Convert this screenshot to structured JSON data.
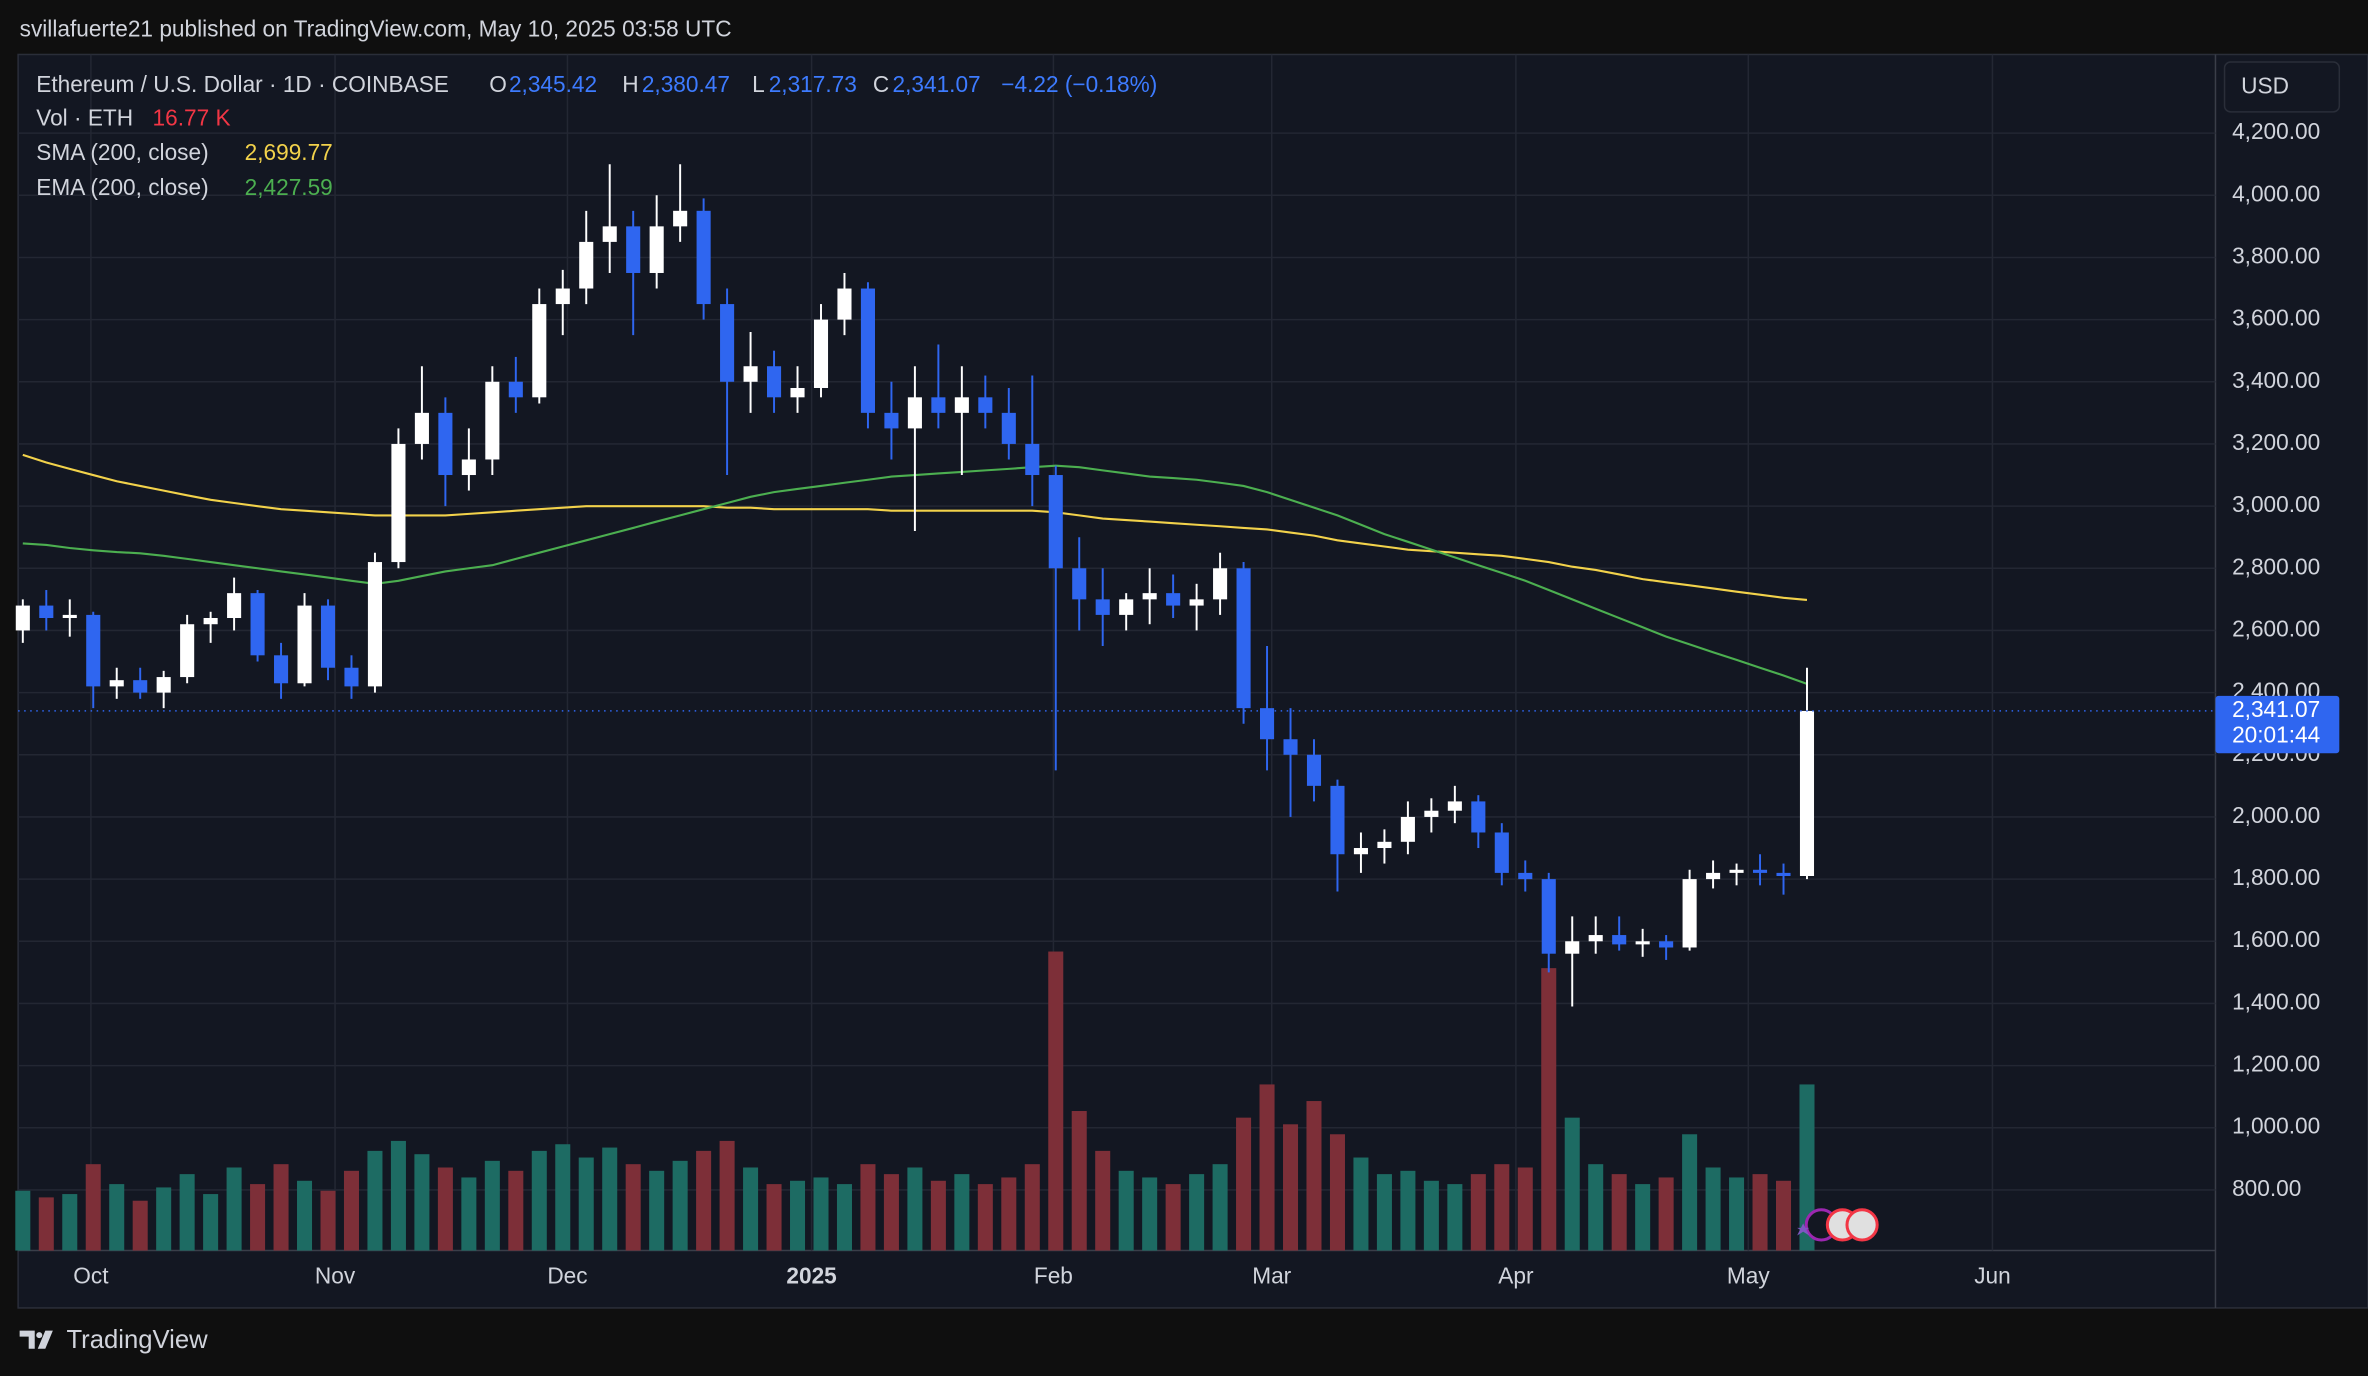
{
  "header": {
    "published": "svillafuerte21 published on TradingView.com, May 10, 2025 03:58 UTC"
  },
  "footer": {
    "brand": "TradingView"
  },
  "chart_data": {
    "type": "candlestick",
    "legend": {
      "symbol": "Ethereum / U.S. Dollar · 1D · COINBASE",
      "o_label": "O",
      "o": "2,345.42",
      "h_label": "H",
      "h": "2,380.47",
      "l_label": "L",
      "l": "2,317.73",
      "c_label": "C",
      "c": "2,341.07",
      "change": "−4.22 (−0.18%)"
    },
    "currency": "USD",
    "last_price": {
      "value": 2341.07,
      "label": "2,341.07"
    },
    "countdown": "20:01:44",
    "up_color": "#ffffff",
    "down_color": "#2f66f0",
    "grid": true,
    "ylim": [
      605,
      4453
    ],
    "yticks": [
      {
        "value": 800,
        "label": "800.00"
      },
      {
        "value": 1000,
        "label": "1,000.00"
      },
      {
        "value": 1200,
        "label": "1,200.00"
      },
      {
        "value": 1400,
        "label": "1,400.00"
      },
      {
        "value": 1600,
        "label": "1,600.00"
      },
      {
        "value": 1800,
        "label": "1,800.00"
      },
      {
        "value": 2000,
        "label": "2,000.00"
      },
      {
        "value": 2200,
        "label": "2,200.00"
      },
      {
        "value": 2400,
        "label": "2,400.00"
      },
      {
        "value": 2600,
        "label": "2,600.00"
      },
      {
        "value": 2800,
        "label": "2,800.00"
      },
      {
        "value": 3000,
        "label": "3,000.00"
      },
      {
        "value": 3200,
        "label": "3,200.00"
      },
      {
        "value": 3400,
        "label": "3,400.00"
      },
      {
        "value": 3600,
        "label": "3,600.00"
      },
      {
        "value": 3800,
        "label": "3,800.00"
      },
      {
        "value": 4000,
        "label": "4,000.00"
      },
      {
        "value": 4200,
        "label": "4,200.00"
      }
    ],
    "xlim": [
      -0.2,
      93.4
    ],
    "xticks": [
      {
        "value": 2.9,
        "label": "Oct"
      },
      {
        "value": 13.3,
        "label": "Nov"
      },
      {
        "value": 23.2,
        "label": "Dec"
      },
      {
        "value": 33.6,
        "label": "2025"
      },
      {
        "value": 43.9,
        "label": "Feb"
      },
      {
        "value": 53.2,
        "label": "Mar"
      },
      {
        "value": 63.6,
        "label": "Apr"
      },
      {
        "value": 73.5,
        "label": "May"
      },
      {
        "value": 83.9,
        "label": "Jun"
      }
    ],
    "candles": [
      [
        2600,
        2700,
        2560,
        2680
      ],
      [
        2680,
        2730,
        2600,
        2640
      ],
      [
        2640,
        2700,
        2580,
        2650
      ],
      [
        2650,
        2660,
        2350,
        2420
      ],
      [
        2420,
        2480,
        2380,
        2440
      ],
      [
        2440,
        2480,
        2380,
        2400
      ],
      [
        2400,
        2470,
        2350,
        2450
      ],
      [
        2450,
        2650,
        2430,
        2620
      ],
      [
        2620,
        2660,
        2560,
        2640
      ],
      [
        2640,
        2770,
        2600,
        2720
      ],
      [
        2720,
        2730,
        2500,
        2520
      ],
      [
        2520,
        2560,
        2380,
        2430
      ],
      [
        2430,
        2720,
        2420,
        2680
      ],
      [
        2680,
        2700,
        2440,
        2480
      ],
      [
        2480,
        2520,
        2380,
        2420
      ],
      [
        2420,
        2850,
        2400,
        2820
      ],
      [
        2820,
        3250,
        2800,
        3200
      ],
      [
        3200,
        3450,
        3150,
        3300
      ],
      [
        3300,
        3350,
        3000,
        3100
      ],
      [
        3100,
        3250,
        3050,
        3150
      ],
      [
        3150,
        3450,
        3100,
        3400
      ],
      [
        3400,
        3480,
        3300,
        3350
      ],
      [
        3350,
        3700,
        3330,
        3650
      ],
      [
        3650,
        3760,
        3550,
        3700
      ],
      [
        3700,
        3950,
        3650,
        3850
      ],
      [
        3850,
        4100,
        3750,
        3900
      ],
      [
        3900,
        3950,
        3550,
        3750
      ],
      [
        3750,
        4000,
        3700,
        3900
      ],
      [
        3900,
        4100,
        3850,
        3950
      ],
      [
        3950,
        3990,
        3600,
        3650
      ],
      [
        3650,
        3700,
        3100,
        3400
      ],
      [
        3400,
        3560,
        3300,
        3450
      ],
      [
        3450,
        3500,
        3300,
        3350
      ],
      [
        3350,
        3450,
        3300,
        3380
      ],
      [
        3380,
        3650,
        3350,
        3600
      ],
      [
        3600,
        3750,
        3550,
        3700
      ],
      [
        3700,
        3720,
        3250,
        3300
      ],
      [
        3300,
        3400,
        3150,
        3250
      ],
      [
        3250,
        3450,
        2920,
        3350
      ],
      [
        3350,
        3520,
        3250,
        3300
      ],
      [
        3300,
        3450,
        3100,
        3350
      ],
      [
        3350,
        3420,
        3250,
        3300
      ],
      [
        3300,
        3380,
        3150,
        3200
      ],
      [
        3200,
        3420,
        3000,
        3100
      ],
      [
        3100,
        3130,
        2150,
        2800
      ],
      [
        2800,
        2900,
        2600,
        2700
      ],
      [
        2700,
        2800,
        2550,
        2650
      ],
      [
        2650,
        2720,
        2600,
        2700
      ],
      [
        2700,
        2800,
        2620,
        2720
      ],
      [
        2720,
        2780,
        2640,
        2680
      ],
      [
        2680,
        2750,
        2600,
        2700
      ],
      [
        2700,
        2850,
        2650,
        2800
      ],
      [
        2800,
        2820,
        2300,
        2350
      ],
      [
        2350,
        2550,
        2150,
        2250
      ],
      [
        2250,
        2350,
        2000,
        2200
      ],
      [
        2200,
        2250,
        2050,
        2100
      ],
      [
        2100,
        2120,
        1760,
        1880
      ],
      [
        1880,
        1950,
        1820,
        1900
      ],
      [
        1900,
        1960,
        1850,
        1920
      ],
      [
        1920,
        2050,
        1880,
        2000
      ],
      [
        2000,
        2060,
        1950,
        2020
      ],
      [
        2020,
        2100,
        1980,
        2050
      ],
      [
        2050,
        2070,
        1900,
        1950
      ],
      [
        1950,
        1980,
        1780,
        1820
      ],
      [
        1820,
        1860,
        1760,
        1800
      ],
      [
        1800,
        1820,
        1500,
        1560
      ],
      [
        1560,
        1680,
        1390,
        1600
      ],
      [
        1600,
        1680,
        1560,
        1620
      ],
      [
        1620,
        1680,
        1570,
        1590
      ],
      [
        1590,
        1640,
        1550,
        1600
      ],
      [
        1600,
        1620,
        1540,
        1580
      ],
      [
        1580,
        1830,
        1570,
        1800
      ],
      [
        1800,
        1860,
        1770,
        1820
      ],
      [
        1820,
        1850,
        1780,
        1830
      ],
      [
        1830,
        1880,
        1780,
        1820
      ],
      [
        1820,
        1850,
        1750,
        1810
      ],
      [
        1810,
        2480,
        1800,
        2341.07
      ]
    ],
    "volume": {
      "name": "Vol · ETH",
      "value_label": "16.77 K",
      "up_color": "#1d6b63",
      "down_color": "#7d2f38",
      "vlim": [
        0,
        1000
      ],
      "values": [
        180,
        160,
        170,
        260,
        200,
        150,
        190,
        230,
        170,
        250,
        200,
        260,
        210,
        180,
        240,
        300,
        330,
        290,
        250,
        220,
        270,
        240,
        300,
        320,
        280,
        310,
        260,
        240,
        270,
        300,
        330,
        250,
        200,
        210,
        220,
        200,
        260,
        230,
        250,
        210,
        230,
        200,
        220,
        260,
        900,
        420,
        300,
        240,
        220,
        200,
        230,
        260,
        400,
        500,
        380,
        450,
        350,
        280,
        230,
        240,
        210,
        200,
        230,
        260,
        250,
        850,
        400,
        260,
        230,
        200,
        220,
        350,
        250,
        220,
        230,
        210,
        500
      ]
    },
    "series": [
      {
        "name": "SMA (200, close)",
        "value_label": "2,699.77",
        "color": "#f2d24b",
        "values": [
          3165,
          3140,
          3120,
          3100,
          3080,
          3065,
          3050,
          3035,
          3020,
          3010,
          3000,
          2990,
          2985,
          2980,
          2975,
          2970,
          2970,
          2970,
          2970,
          2975,
          2980,
          2985,
          2990,
          2995,
          3000,
          3000,
          3000,
          3000,
          3000,
          3000,
          2995,
          2995,
          2990,
          2990,
          2990,
          2990,
          2990,
          2985,
          2985,
          2985,
          2985,
          2985,
          2985,
          2985,
          2980,
          2970,
          2960,
          2955,
          2950,
          2945,
          2940,
          2935,
          2930,
          2925,
          2915,
          2905,
          2890,
          2880,
          2870,
          2860,
          2855,
          2850,
          2845,
          2840,
          2830,
          2820,
          2805,
          2795,
          2780,
          2765,
          2755,
          2745,
          2735,
          2725,
          2715,
          2705,
          2698
        ]
      },
      {
        "name": "EMA (200, close)",
        "value_label": "2,427.59",
        "color": "#4caf50",
        "values": [
          2880,
          2875,
          2865,
          2858,
          2852,
          2848,
          2840,
          2830,
          2820,
          2810,
          2800,
          2790,
          2780,
          2770,
          2760,
          2750,
          2760,
          2775,
          2790,
          2800,
          2810,
          2830,
          2850,
          2870,
          2890,
          2910,
          2930,
          2950,
          2970,
          2990,
          3010,
          3030,
          3045,
          3055,
          3065,
          3075,
          3085,
          3095,
          3100,
          3105,
          3110,
          3115,
          3120,
          3125,
          3130,
          3125,
          3115,
          3105,
          3095,
          3090,
          3085,
          3075,
          3065,
          3045,
          3020,
          2995,
          2970,
          2940,
          2910,
          2885,
          2860,
          2835,
          2810,
          2785,
          2760,
          2730,
          2700,
          2670,
          2640,
          2610,
          2580,
          2555,
          2530,
          2505,
          2480,
          2455,
          2428
        ]
      }
    ]
  }
}
